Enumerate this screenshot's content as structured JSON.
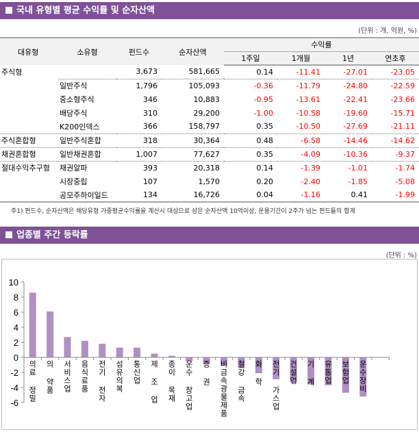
{
  "section1": {
    "title": "국내 유형별 평균 수익률 및 순자산액",
    "unit": "(단위 : 개, 억원, %)"
  },
  "table": {
    "headers": {
      "major": "대유형",
      "minor": "소유형",
      "count": "펀드수",
      "assets": "순자산액",
      "returns": "수익률",
      "w1": "1주일",
      "m1": "1개월",
      "y1": "1년",
      "ytd": "연초후"
    },
    "rows": [
      {
        "major": "주식형",
        "minor": "",
        "count": "3,673",
        "assets": "581,665",
        "w1": "0.14",
        "m1": "-11.41",
        "y1": "-27.01",
        "ytd": "-23.05"
      },
      {
        "major": "",
        "minor": "일반주식",
        "count": "1,796",
        "assets": "105,093",
        "w1": "-0.36",
        "m1": "-11.79",
        "y1": "-24.80",
        "ytd": "-22.59"
      },
      {
        "major": "",
        "minor": "중소형주식",
        "count": "346",
        "assets": "10,883",
        "w1": "-0.95",
        "m1": "-13.61",
        "y1": "-22.41",
        "ytd": "-23.66"
      },
      {
        "major": "",
        "minor": "배당주식",
        "count": "310",
        "assets": "29,200",
        "w1": "-1.00",
        "m1": "-10.58",
        "y1": "-19.60",
        "ytd": "-15.71"
      },
      {
        "major": "",
        "minor": "K200인덱스",
        "count": "366",
        "assets": "158,797",
        "w1": "0.35",
        "m1": "-10.50",
        "y1": "-27.69",
        "ytd": "-21.11"
      },
      {
        "major": "주식혼합형",
        "minor": "일반주식혼합",
        "count": "318",
        "assets": "30,364",
        "w1": "0.48",
        "m1": "-6.58",
        "y1": "-14.46",
        "ytd": "-14.62"
      },
      {
        "major": "채권혼합형",
        "minor": "일반채권혼합",
        "count": "1,007",
        "assets": "77,627",
        "w1": "0.35",
        "m1": "-4.09",
        "y1": "-10.36",
        "ytd": "-9.37"
      },
      {
        "major": "절대수익추구형",
        "minor": "채권알파",
        "count": "393",
        "assets": "20,318",
        "w1": "0.14",
        "m1": "-1.39",
        "y1": "-1.01",
        "ytd": "-1.74"
      },
      {
        "major": "",
        "minor": "시장중립",
        "count": "107",
        "assets": "1,570",
        "w1": "0.20",
        "m1": "-2.40",
        "y1": "-1.85",
        "ytd": "-5.08"
      },
      {
        "major": "",
        "minor": "공모주하이일드",
        "count": "134",
        "assets": "16,726",
        "w1": "0.04",
        "m1": "-1.16",
        "y1": "0.41",
        "ytd": "-1.99"
      }
    ],
    "note": "주1) 펀드수, 순자산액은 해당유형 가중평균수익률을 계산시 대상으로 삼은 순자산액 10억이상, 운용기간이 2주가 넘는 펀드들의 합계"
  },
  "section2": {
    "title": "업종별 주간 등락률",
    "unit": "(단위 : %)"
  },
  "chart_data": {
    "type": "bar",
    "categories": [
      "의료 정밀",
      "의 약품",
      "서비스업",
      "음식료품",
      "전기 전자",
      "섬유의복",
      "통신업",
      "제 조 업",
      "종이 목재",
      "운수 창고업",
      "증 권",
      "비금속광물제품",
      "철강 금속",
      "화 학",
      "전기 가스업",
      "건설업",
      "기 계",
      "유통업",
      "보험업",
      "운수장비"
    ],
    "values": [
      8.6,
      6.1,
      2.7,
      2.2,
      1.8,
      1.3,
      1.3,
      0.5,
      0.2,
      -0.5,
      -0.8,
      -1.1,
      -1.4,
      -2.1,
      -2.9,
      -3.3,
      -3.6,
      -3.7,
      -4.7,
      -5.2
    ],
    "ylim": [
      -6,
      10
    ],
    "yticks": [
      "10",
      "8",
      "6",
      "4",
      "2",
      "0",
      "-2",
      "-4",
      "-6"
    ],
    "bar_color": "#b18fc3"
  }
}
